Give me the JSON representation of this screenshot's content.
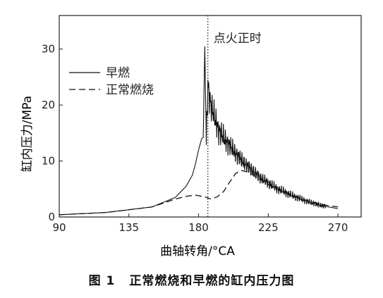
{
  "caption": {
    "label": "图 1",
    "text": "正常燃烧和早燃的缸内压力图"
  },
  "chart_data": {
    "type": "line",
    "title": "",
    "xlabel": "曲轴转角/°CA",
    "ylabel": "缸内压力/MPa",
    "xlim": [
      90,
      285
    ],
    "ylim": [
      0,
      36
    ],
    "xticks": [
      90,
      135,
      180,
      225,
      270
    ],
    "yticks": [
      0,
      10,
      20,
      30
    ],
    "grid": false,
    "legend_position": "upper-left",
    "annotation": {
      "text": "点火正时",
      "x": 186
    },
    "series": [
      {
        "name": "早燃",
        "style": "solid",
        "x": [
          90,
          120,
          150,
          165,
          172,
          176,
          178,
          180,
          182,
          183,
          184,
          185,
          186,
          188,
          190,
          193,
          196,
          200,
          205,
          210,
          220,
          230,
          240,
          250,
          260,
          270
        ],
        "y": [
          0.4,
          0.8,
          1.8,
          3.5,
          5.5,
          7.5,
          9.5,
          12.0,
          14.0,
          14.2,
          30.5,
          13.5,
          23.5,
          20.0,
          18.0,
          15.5,
          14.2,
          12.8,
          11.0,
          9.5,
          7.0,
          5.2,
          3.9,
          2.8,
          2.0,
          1.5
        ],
        "oscillation": true
      },
      {
        "name": "正常燃烧",
        "style": "dashed",
        "x": [
          90,
          120,
          150,
          165,
          172,
          178,
          184,
          188,
          192,
          196,
          200,
          204,
          208,
          212,
          216,
          220,
          225,
          230,
          240,
          250,
          260,
          270
        ],
        "y": [
          0.4,
          0.8,
          1.8,
          3.2,
          3.7,
          3.9,
          3.6,
          3.2,
          3.6,
          4.5,
          6.2,
          7.8,
          8.3,
          8.0,
          7.4,
          6.7,
          5.8,
          5.0,
          3.8,
          2.9,
          2.2,
          1.8
        ]
      }
    ]
  }
}
